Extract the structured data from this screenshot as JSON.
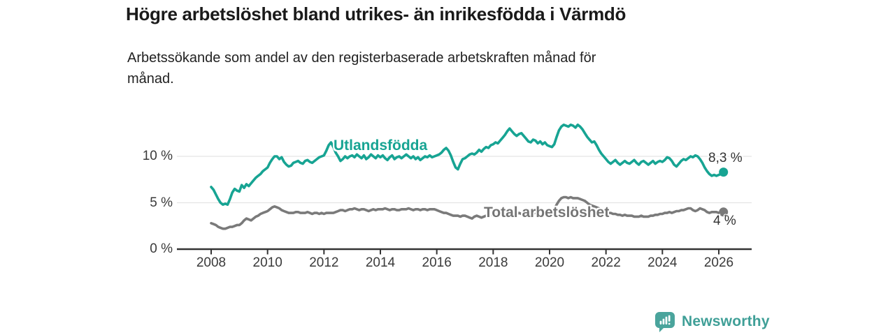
{
  "header": {
    "title": "Högre arbetslöshet bland utrikes- än inrikesfödda i Värmdö",
    "subtitle": "Arbetssökande som andel av den registerbaserade arbetskraften månad för månad."
  },
  "colors": {
    "teal": "#17a493",
    "gray": "#7a7a7a",
    "label_gray": "#757575",
    "axis": "#333333",
    "grid": "#e4e4e4",
    "text": "#1a1a1a",
    "brand_teal": "#4aa49c",
    "brand_text": "#3f9f97"
  },
  "footer": {
    "brand": "Newsworthy"
  },
  "chart_data": {
    "type": "line",
    "title": "Högre arbetslöshet bland utrikes- än inrikesfödda i Värmdö",
    "subtitle": "Arbetssökande som andel av den registerbaserade arbetskraften månad för månad.",
    "x_start_year": 2008,
    "points_per_year": 12,
    "x_range": [
      2008.0,
      2026.17
    ],
    "ylim": [
      0,
      14
    ],
    "grid": "horizontal-only",
    "yticks": [
      {
        "value": 0,
        "label": "0 %"
      },
      {
        "value": 5,
        "label": "5 %"
      },
      {
        "value": 10,
        "label": "10 %"
      }
    ],
    "xticks": [
      2008,
      2010,
      2012,
      2014,
      2016,
      2018,
      2020,
      2022,
      2024,
      2026
    ],
    "series": [
      {
        "name": "Utlandsfödda",
        "color": "#17a493",
        "end_label": "8,3 %",
        "end_value": 8.3,
        "values": [
          6.7,
          6.4,
          5.9,
          5.4,
          5.0,
          4.8,
          4.9,
          4.8,
          5.4,
          6.1,
          6.5,
          6.3,
          6.2,
          6.9,
          6.6,
          7.0,
          6.8,
          7.1,
          7.4,
          7.7,
          7.9,
          8.1,
          8.4,
          8.6,
          8.8,
          9.3,
          9.7,
          10.0,
          10.0,
          9.7,
          9.9,
          9.4,
          9.1,
          8.9,
          9.0,
          9.3,
          9.4,
          9.5,
          9.3,
          9.2,
          9.5,
          9.6,
          9.4,
          9.3,
          9.5,
          9.7,
          9.9,
          10.0,
          10.1,
          10.6,
          11.2,
          11.5,
          11.0,
          10.4,
          10.0,
          9.5,
          9.7,
          10.0,
          9.8,
          10.0,
          10.1,
          9.9,
          10.2,
          10.0,
          9.8,
          10.1,
          9.7,
          9.9,
          10.2,
          10.0,
          9.8,
          10.1,
          9.9,
          10.1,
          9.8,
          9.6,
          9.9,
          10.1,
          9.7,
          9.9,
          10.0,
          9.8,
          10.0,
          10.2,
          10.0,
          9.8,
          10.0,
          9.7,
          9.9,
          9.6,
          9.8,
          10.0,
          9.9,
          10.1,
          9.9,
          10.0,
          10.1,
          10.2,
          10.4,
          10.7,
          10.9,
          10.6,
          10.1,
          9.4,
          8.8,
          8.6,
          9.2,
          9.7,
          9.8,
          10.0,
          10.2,
          10.3,
          10.2,
          10.4,
          10.7,
          10.5,
          10.8,
          11.0,
          10.9,
          11.2,
          11.3,
          11.5,
          11.4,
          11.7,
          12.0,
          12.3,
          12.7,
          13.0,
          12.7,
          12.4,
          12.2,
          12.4,
          12.5,
          12.2,
          11.9,
          11.6,
          11.5,
          11.8,
          11.7,
          11.4,
          11.6,
          11.3,
          11.5,
          11.2,
          11.1,
          11.0,
          11.3,
          12.1,
          12.8,
          13.2,
          13.4,
          13.3,
          13.2,
          13.4,
          13.3,
          13.1,
          13.4,
          13.2,
          12.9,
          12.5,
          12.1,
          11.8,
          11.5,
          11.6,
          11.2,
          10.7,
          10.3,
          10.0,
          9.7,
          9.4,
          9.2,
          9.4,
          9.6,
          9.3,
          9.1,
          9.3,
          9.5,
          9.3,
          9.2,
          9.4,
          9.6,
          9.3,
          9.1,
          9.4,
          9.5,
          9.3,
          9.1,
          9.3,
          9.5,
          9.2,
          9.4,
          9.5,
          9.4,
          9.6,
          9.9,
          9.8,
          9.5,
          9.1,
          8.9,
          9.2,
          9.5,
          9.7,
          9.6,
          9.8,
          10.0,
          9.9,
          10.1,
          10.0,
          9.7,
          9.3,
          8.8,
          8.4,
          8.1,
          7.9,
          8.0,
          7.9,
          8.0,
          8.1,
          8.3
        ]
      },
      {
        "name": "Total arbetslöshet",
        "color": "#7a7a7a",
        "end_label": "4 %",
        "end_value": 4,
        "values": [
          2.8,
          2.7,
          2.6,
          2.4,
          2.3,
          2.2,
          2.2,
          2.3,
          2.4,
          2.4,
          2.5,
          2.6,
          2.6,
          2.8,
          3.1,
          3.3,
          3.2,
          3.1,
          3.3,
          3.5,
          3.6,
          3.8,
          3.9,
          4.0,
          4.1,
          4.3,
          4.5,
          4.6,
          4.5,
          4.4,
          4.2,
          4.1,
          4.0,
          3.9,
          3.9,
          3.9,
          4.0,
          4.0,
          3.9,
          3.9,
          3.9,
          4.0,
          3.9,
          3.8,
          3.9,
          3.9,
          3.8,
          3.9,
          3.8,
          3.9,
          3.9,
          3.9,
          3.9,
          4.0,
          4.1,
          4.2,
          4.2,
          4.1,
          4.2,
          4.3,
          4.3,
          4.4,
          4.3,
          4.2,
          4.3,
          4.3,
          4.2,
          4.1,
          4.2,
          4.3,
          4.2,
          4.3,
          4.3,
          4.3,
          4.4,
          4.3,
          4.2,
          4.3,
          4.3,
          4.2,
          4.2,
          4.3,
          4.3,
          4.3,
          4.4,
          4.3,
          4.2,
          4.3,
          4.3,
          4.2,
          4.3,
          4.3,
          4.2,
          4.3,
          4.3,
          4.3,
          4.2,
          4.1,
          4.0,
          3.9,
          3.9,
          3.8,
          3.7,
          3.6,
          3.6,
          3.6,
          3.5,
          3.6,
          3.6,
          3.5,
          3.4,
          3.3,
          3.5,
          3.6,
          3.5,
          3.4,
          3.5,
          3.6,
          3.6,
          3.7,
          3.7,
          3.8,
          3.7,
          3.7,
          3.7,
          3.8,
          3.8,
          3.8,
          3.7,
          3.8,
          3.8,
          3.9,
          3.8,
          3.8,
          3.8,
          3.9,
          3.8,
          3.9,
          3.9,
          3.9,
          3.8,
          3.9,
          3.9,
          4.0,
          4.0,
          4.1,
          4.3,
          4.8,
          5.2,
          5.5,
          5.6,
          5.6,
          5.5,
          5.6,
          5.5,
          5.5,
          5.5,
          5.4,
          5.3,
          5.2,
          5.0,
          4.8,
          4.7,
          4.6,
          4.5,
          4.4,
          4.2,
          4.1,
          4.0,
          3.9,
          3.9,
          3.8,
          3.8,
          3.7,
          3.7,
          3.6,
          3.7,
          3.6,
          3.6,
          3.6,
          3.5,
          3.5,
          3.5,
          3.6,
          3.5,
          3.5,
          3.5,
          3.6,
          3.6,
          3.7,
          3.7,
          3.8,
          3.8,
          3.9,
          3.9,
          4.0,
          3.9,
          4.0,
          4.1,
          4.1,
          4.2,
          4.2,
          4.3,
          4.4,
          4.4,
          4.2,
          4.1,
          4.2,
          4.4,
          4.3,
          4.2,
          4.0,
          3.9,
          4.0,
          4.0,
          4.0,
          3.9,
          4.0,
          4.0
        ]
      }
    ]
  }
}
